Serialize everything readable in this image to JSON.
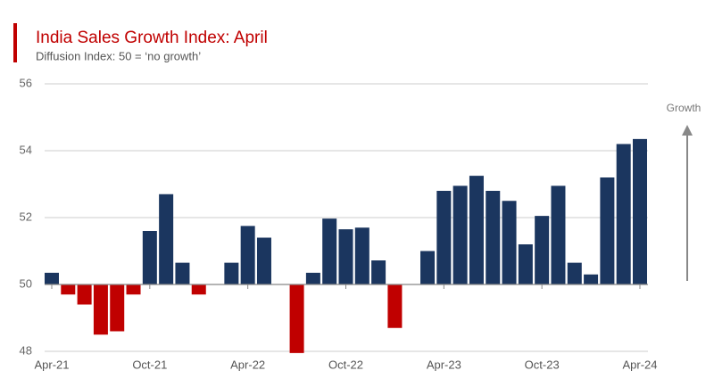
{
  "chart_data": {
    "type": "bar",
    "title": "India Sales Growth Index: April",
    "subtitle": "Diffusion Index: 50 = ‘no growth’",
    "annotation": "Growth",
    "categories": [
      "Apr-21",
      null,
      null,
      null,
      null,
      null,
      "Oct-21",
      null,
      null,
      null,
      null,
      null,
      "Apr-22",
      null,
      null,
      null,
      null,
      null,
      "Oct-22",
      null,
      null,
      null,
      null,
      null,
      "Apr-23",
      null,
      null,
      null,
      null,
      null,
      "Oct-23",
      null,
      null,
      null,
      null,
      null,
      "Apr-24"
    ],
    "values": [
      50.35,
      49.7,
      49.4,
      48.5,
      48.6,
      49.7,
      51.6,
      52.7,
      50.65,
      49.7,
      50,
      50.65,
      51.75,
      51.4,
      50,
      47.95,
      50.35,
      51.97,
      51.65,
      51.7,
      50.72,
      48.7,
      50,
      51.0,
      52.8,
      52.95,
      53.25,
      52.8,
      52.5,
      51.2,
      52.05,
      52.95,
      50.65,
      50.3,
      53.2,
      54.2,
      54.35
    ],
    "baseline": 50,
    "color": "#1b365f",
    "negative_color": "#c00000",
    "ylim": [
      48,
      56
    ],
    "yticks": [
      48,
      50,
      52,
      54,
      56
    ],
    "grid": true
  }
}
